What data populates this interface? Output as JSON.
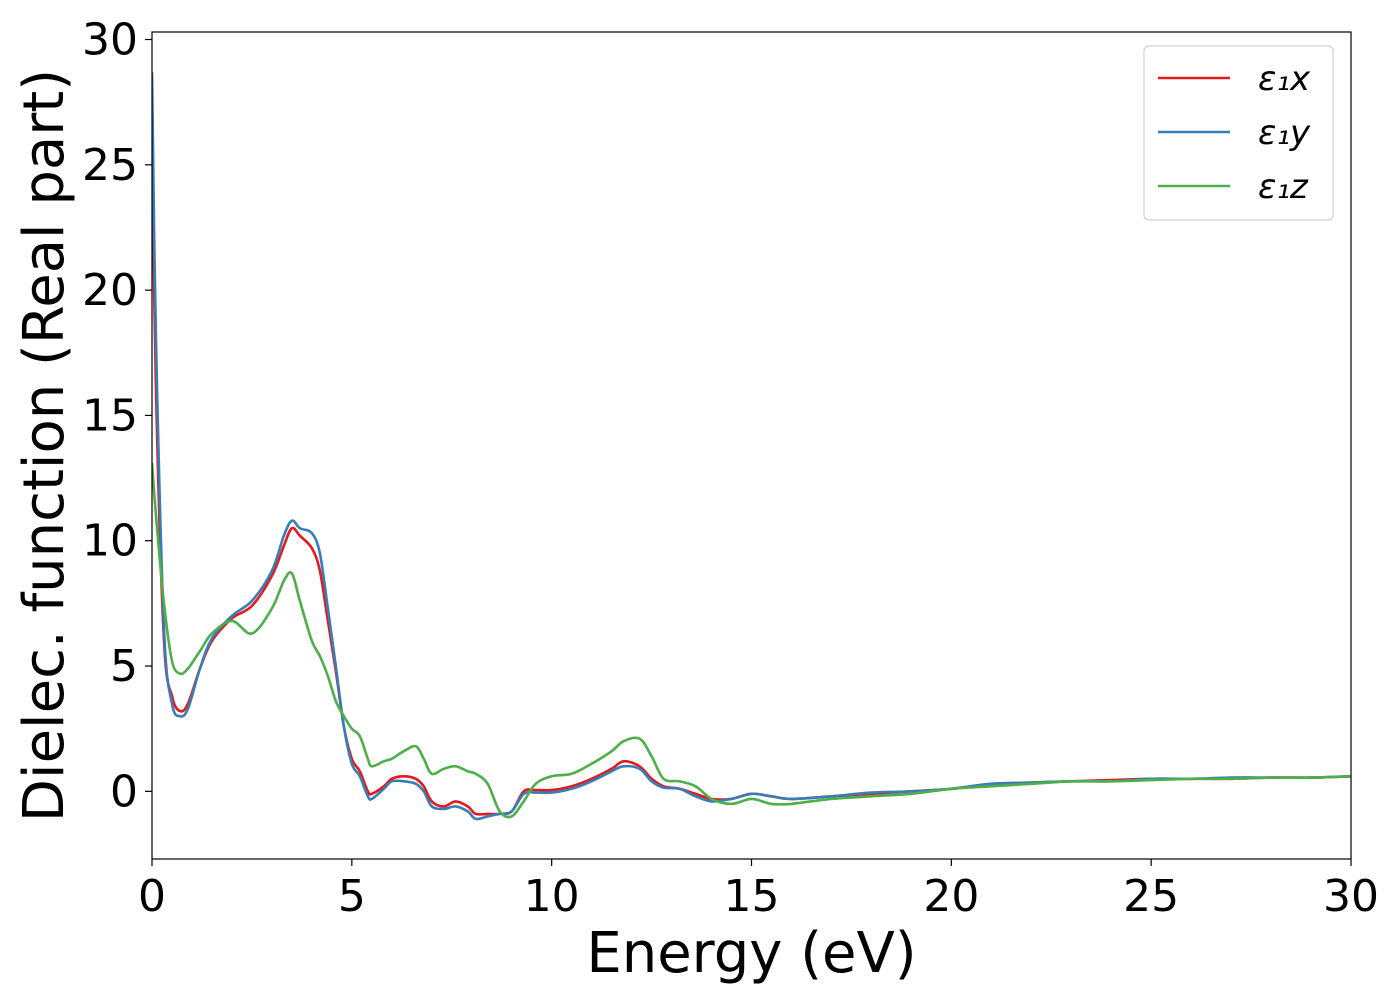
{
  "chart_data": {
    "type": "line",
    "title": "",
    "xlabel": "Energy (eV)",
    "ylabel": "Dielec. function (Real part)",
    "xlim": [
      0,
      30
    ],
    "ylim": [
      -2.7,
      30.3
    ],
    "xticks": [
      0,
      5,
      10,
      15,
      20,
      25,
      30
    ],
    "yticks": [
      0,
      5,
      10,
      15,
      20,
      25,
      30
    ],
    "grid": false,
    "legend_position": "top-right",
    "series": [
      {
        "name": "ε₁x",
        "color": "#e41a1c",
        "x": [
          0,
          0.1,
          0.3,
          0.5,
          0.7,
          0.9,
          1.2,
          1.5,
          2.0,
          2.5,
          3.0,
          3.3,
          3.5,
          3.7,
          4.0,
          4.2,
          4.4,
          4.6,
          4.8,
          5.0,
          5.2,
          5.4,
          5.5,
          5.8,
          6.0,
          6.3,
          6.6,
          6.8,
          7.0,
          7.3,
          7.6,
          7.9,
          8.1,
          8.4,
          8.7,
          9.0,
          9.3,
          9.6,
          10.0,
          10.5,
          11.0,
          11.5,
          11.8,
          12.2,
          12.5,
          12.8,
          13.2,
          13.6,
          14.0,
          14.5,
          15.0,
          15.5,
          16.0,
          17.0,
          18.0,
          19.0,
          20.0,
          21.0,
          22.0,
          23.0,
          24.0,
          25.0,
          26.0,
          27.0,
          28.0,
          29.0,
          30.0
        ],
        "y": [
          26.3,
          16.0,
          6.0,
          3.8,
          3.2,
          3.5,
          4.9,
          6.0,
          6.9,
          7.4,
          8.6,
          9.8,
          10.5,
          10.2,
          9.7,
          8.8,
          6.8,
          4.8,
          2.6,
          1.3,
          0.8,
          0.0,
          -0.1,
          0.2,
          0.5,
          0.6,
          0.5,
          0.2,
          -0.4,
          -0.6,
          -0.4,
          -0.6,
          -0.9,
          -0.9,
          -0.9,
          -0.8,
          0.0,
          0.05,
          0.05,
          0.2,
          0.5,
          0.9,
          1.2,
          1.0,
          0.5,
          0.2,
          0.1,
          -0.1,
          -0.3,
          -0.3,
          -0.1,
          -0.2,
          -0.3,
          -0.2,
          -0.1,
          0.0,
          0.1,
          0.3,
          0.35,
          0.4,
          0.45,
          0.5,
          0.5,
          0.5,
          0.55,
          0.55,
          0.6
        ]
      },
      {
        "name": "ε₁y",
        "color": "#377eb8",
        "x": [
          0,
          0.1,
          0.3,
          0.5,
          0.7,
          0.9,
          1.2,
          1.5,
          2.0,
          2.5,
          3.0,
          3.3,
          3.5,
          3.7,
          4.0,
          4.2,
          4.4,
          4.6,
          4.8,
          5.0,
          5.2,
          5.4,
          5.5,
          5.8,
          6.0,
          6.3,
          6.6,
          6.8,
          7.0,
          7.3,
          7.6,
          7.9,
          8.1,
          8.4,
          8.7,
          9.0,
          9.3,
          9.6,
          10.0,
          10.5,
          11.0,
          11.5,
          11.8,
          12.2,
          12.5,
          12.8,
          13.2,
          13.6,
          14.0,
          14.5,
          15.0,
          15.5,
          16.0,
          17.0,
          18.0,
          19.0,
          20.0,
          21.0,
          22.0,
          23.0,
          24.0,
          25.0,
          26.0,
          27.0,
          28.0,
          29.0,
          30.0
        ],
        "y": [
          28.7,
          18.0,
          6.5,
          3.5,
          3.0,
          3.3,
          4.9,
          6.1,
          7.0,
          7.6,
          8.8,
          10.2,
          10.8,
          10.5,
          10.3,
          9.5,
          7.3,
          5.0,
          2.6,
          1.1,
          0.6,
          -0.2,
          -0.3,
          0.1,
          0.4,
          0.4,
          0.3,
          0.0,
          -0.6,
          -0.7,
          -0.6,
          -0.8,
          -1.1,
          -1.0,
          -0.9,
          -0.8,
          -0.1,
          -0.05,
          -0.05,
          0.1,
          0.4,
          0.8,
          1.0,
          0.9,
          0.4,
          0.15,
          0.1,
          -0.2,
          -0.4,
          -0.3,
          -0.1,
          -0.2,
          -0.3,
          -0.2,
          -0.05,
          0.0,
          0.1,
          0.3,
          0.35,
          0.4,
          0.4,
          0.5,
          0.5,
          0.55,
          0.55,
          0.55,
          0.6
        ]
      },
      {
        "name": "ε₁z",
        "color": "#4daf4a",
        "x": [
          0,
          0.1,
          0.3,
          0.5,
          0.7,
          0.9,
          1.2,
          1.5,
          2.0,
          2.5,
          3.0,
          3.3,
          3.5,
          3.7,
          4.0,
          4.2,
          4.4,
          4.6,
          4.8,
          5.0,
          5.2,
          5.4,
          5.5,
          5.8,
          6.0,
          6.3,
          6.6,
          6.8,
          7.0,
          7.3,
          7.6,
          7.9,
          8.1,
          8.4,
          8.7,
          9.0,
          9.3,
          9.6,
          10.0,
          10.5,
          11.0,
          11.5,
          11.8,
          12.2,
          12.5,
          12.8,
          13.2,
          13.6,
          14.0,
          14.5,
          15.0,
          15.5,
          16.0,
          17.0,
          18.0,
          19.0,
          20.0,
          21.0,
          22.0,
          23.0,
          24.0,
          25.0,
          26.0,
          27.0,
          28.0,
          29.0,
          30.0
        ],
        "y": [
          13.1,
          11.0,
          7.5,
          5.2,
          4.7,
          4.9,
          5.6,
          6.3,
          6.8,
          6.3,
          7.3,
          8.4,
          8.7,
          7.6,
          6.0,
          5.4,
          4.6,
          3.6,
          3.0,
          2.5,
          2.2,
          1.3,
          1.0,
          1.2,
          1.3,
          1.6,
          1.8,
          1.3,
          0.7,
          0.9,
          1.0,
          0.8,
          0.7,
          0.3,
          -0.8,
          -1.0,
          -0.4,
          0.3,
          0.6,
          0.7,
          1.1,
          1.6,
          2.0,
          2.1,
          1.4,
          0.5,
          0.4,
          0.2,
          -0.3,
          -0.5,
          -0.3,
          -0.5,
          -0.5,
          -0.3,
          -0.2,
          -0.1,
          0.1,
          0.2,
          0.3,
          0.4,
          0.4,
          0.45,
          0.5,
          0.5,
          0.55,
          0.55,
          0.6
        ]
      }
    ]
  }
}
